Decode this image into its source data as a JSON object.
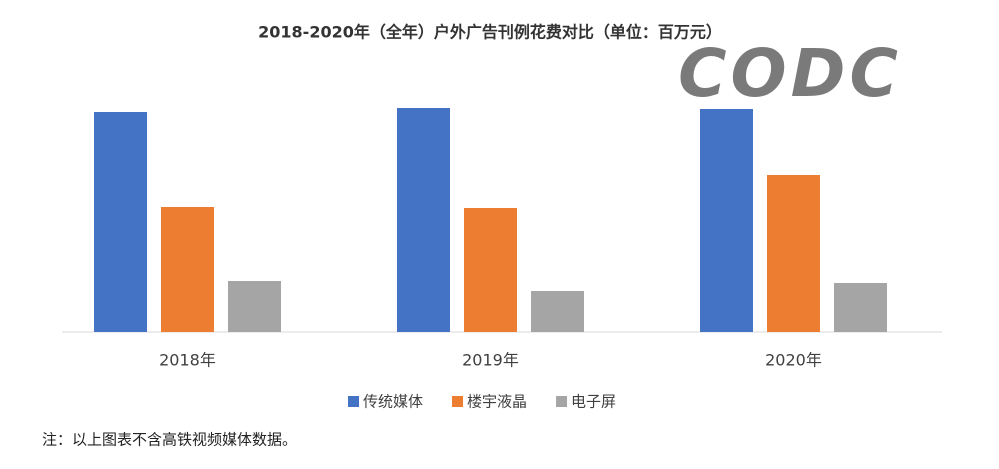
{
  "chart_data": {
    "type": "bar",
    "title": "2018-2020年（全年）户外广告刊例花费对比（单位：百万元）",
    "watermark": "CODC",
    "categories": [
      "2018年",
      "2019年",
      "2020年"
    ],
    "series": [
      {
        "name": "传统媒体",
        "color": "#4472c4",
        "values": [
          220,
          224,
          223
        ]
      },
      {
        "name": "楼宇液晶",
        "color": "#ed7d31",
        "values": [
          125,
          124,
          157
        ]
      },
      {
        "name": "电子屏",
        "color": "#a5a5a5",
        "values": [
          51,
          41,
          49
        ]
      }
    ],
    "ylim": [
      0,
      250
    ],
    "legend": "bottom",
    "note": "注：以上图表不含高铁视频媒体数据。"
  }
}
